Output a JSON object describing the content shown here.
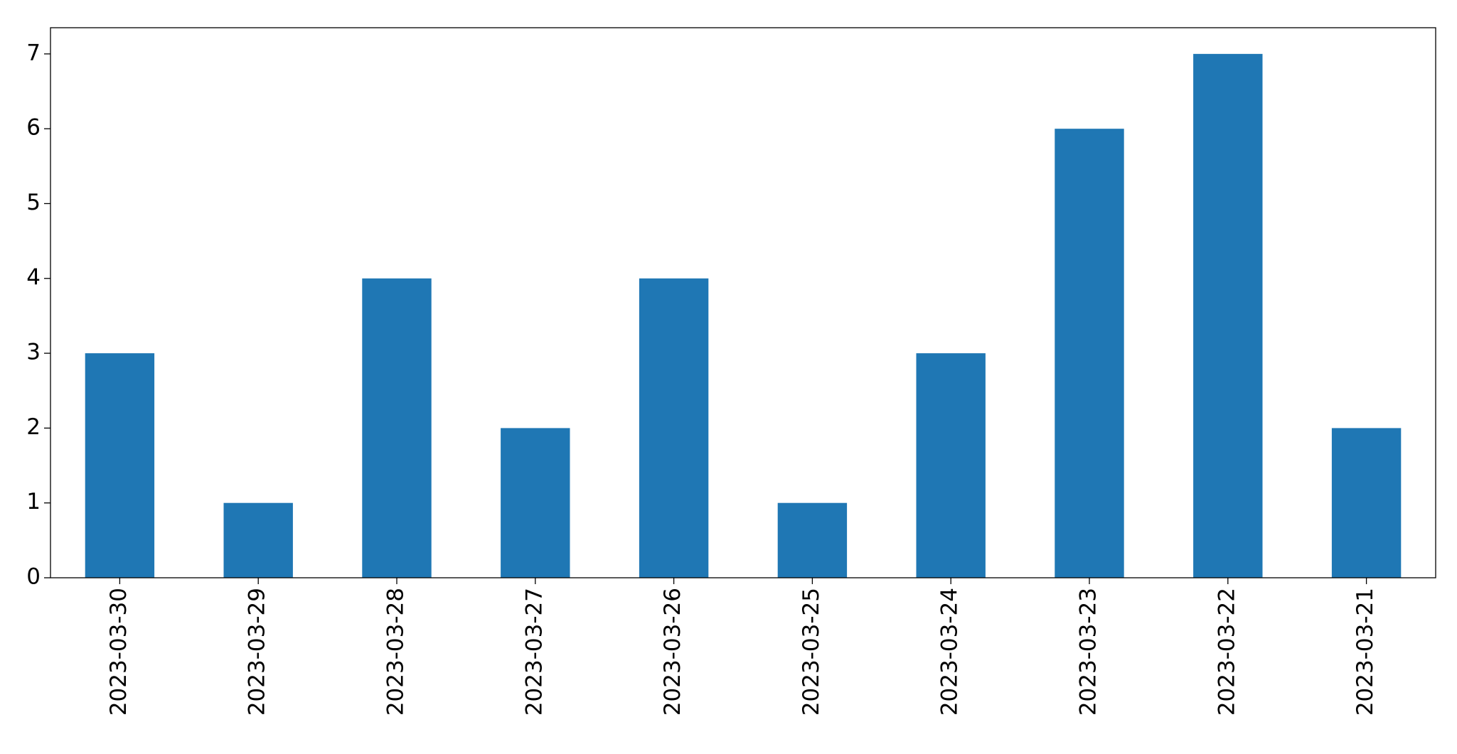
{
  "chart_data": {
    "type": "bar",
    "categories": [
      "2023-03-30",
      "2023-03-29",
      "2023-03-28",
      "2023-03-27",
      "2023-03-26",
      "2023-03-25",
      "2023-03-24",
      "2023-03-23",
      "2023-03-22",
      "2023-03-21"
    ],
    "values": [
      3,
      1,
      4,
      2,
      4,
      1,
      3,
      6,
      7,
      2
    ],
    "color": "#1f77b4",
    "ylim": [
      0,
      7.35
    ],
    "yticks": [
      0,
      1,
      2,
      3,
      4,
      5,
      6,
      7
    ],
    "grid": false
  }
}
